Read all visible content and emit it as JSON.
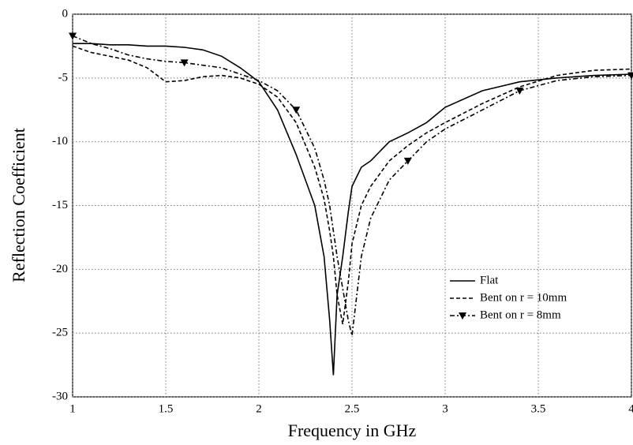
{
  "chart_data": {
    "type": "line",
    "x_label": "Frequency in GHz",
    "y_label": "Reflection Coefficient",
    "x": [
      1,
      1.1,
      1.2,
      1.3,
      1.4,
      1.5,
      1.6,
      1.7,
      1.8,
      1.9,
      2.0,
      2.1,
      2.2,
      2.3,
      2.35,
      2.38,
      2.4,
      2.42,
      2.45,
      2.48,
      2.5,
      2.55,
      2.6,
      2.7,
      2.8,
      2.9,
      3.0,
      3.2,
      3.4,
      3.6,
      3.8,
      4.0
    ],
    "series": [
      {
        "name": "Flat",
        "color": "#000000",
        "style": "solid",
        "values": [
          -2.3,
          -2.3,
          -2.4,
          -2.4,
          -2.5,
          -2.5,
          -2.6,
          -2.8,
          -3.3,
          -4.2,
          -5.3,
          -7.5,
          -11,
          -15,
          -19,
          -24,
          -28.3,
          -22,
          -19,
          -15.5,
          -13.5,
          -12,
          -11.5,
          -10,
          -9.3,
          -8.5,
          -7.3,
          -6,
          -5.3,
          -5,
          -4.8,
          -4.7
        ]
      },
      {
        "name": "Bent on r = 10mm",
        "color": "#000000",
        "style": "dashed",
        "values": [
          -2.5,
          -3,
          -3.3,
          -3.6,
          -4.2,
          -5.3,
          -5.2,
          -4.9,
          -4.8,
          -5,
          -5.5,
          -6.5,
          -8.5,
          -12,
          -14.5,
          -17,
          -19,
          -22,
          -24.3,
          -21,
          -18,
          -15,
          -13.5,
          -11.5,
          -10.3,
          -9.3,
          -8.5,
          -7,
          -5.7,
          -4.8,
          -4.4,
          -4.3
        ]
      },
      {
        "name": "Bent on r = 8mm",
        "color": "#000000",
        "style": "dash-dot",
        "marker": "triangle-down",
        "values": [
          -1.7,
          -2.3,
          -2.7,
          -3.2,
          -3.5,
          -3.7,
          -3.8,
          -4,
          -4.2,
          -4.7,
          -5.2,
          -6,
          -7.5,
          -10.5,
          -13,
          -15,
          -17,
          -19,
          -21.5,
          -24,
          -25.2,
          -19,
          -16,
          -13,
          -11.5,
          -10,
          -9,
          -7.5,
          -6,
          -5.2,
          -4.9,
          -4.8
        ]
      }
    ],
    "xlim": [
      1,
      4
    ],
    "xticks": [
      1,
      1.5,
      2,
      2.5,
      3,
      3.5,
      4
    ],
    "ylim": [
      -30,
      0
    ],
    "yticks": [
      0,
      -5,
      -10,
      -15,
      -20,
      -25,
      -30
    ],
    "grid": true,
    "legend": "lower right"
  }
}
